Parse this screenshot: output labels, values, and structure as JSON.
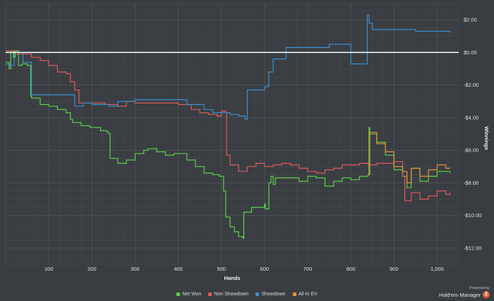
{
  "chart_data": {
    "type": "line",
    "xlabel": "Hands",
    "ylabel": "Winnings",
    "xlim": [
      0,
      1050
    ],
    "ylim": [
      -13,
      3
    ],
    "x_ticks": [
      100,
      200,
      300,
      400,
      500,
      600,
      700,
      800,
      900,
      1000
    ],
    "x_tick_labels": [
      "100",
      "200",
      "300",
      "400",
      "500",
      "600",
      "700",
      "800",
      "900",
      "1,000"
    ],
    "y_ticks": [
      2,
      0,
      -2,
      -4,
      -6,
      -8,
      -10,
      -12
    ],
    "y_tick_labels": [
      "$2.00",
      "$0.00",
      "-$2.00",
      "-$4.00",
      "-$6.00",
      "-$8.00",
      "-$10.00",
      "-$12.00"
    ],
    "grid": true,
    "legend_position": "bottom",
    "series": [
      {
        "name": "Net Won",
        "color": "#5bd048",
        "x": [
          0,
          8,
          12,
          18,
          22,
          30,
          38,
          50,
          58,
          60,
          80,
          100,
          120,
          140,
          150,
          155,
          175,
          195,
          220,
          235,
          240,
          242,
          260,
          280,
          300,
          320,
          330,
          350,
          370,
          390,
          420,
          440,
          460,
          480,
          495,
          500,
          505,
          510,
          520,
          530,
          540,
          550,
          552,
          570,
          600,
          602,
          610,
          615,
          620,
          625,
          650,
          680,
          700,
          720,
          740,
          760,
          780,
          800,
          820,
          840,
          842,
          844,
          860,
          880,
          900,
          920,
          930,
          940,
          960,
          980,
          1000,
          1020,
          1030
        ],
        "y": [
          -0.6,
          -1.0,
          0.1,
          -0.3,
          0.1,
          -0.8,
          -0.7,
          -0.8,
          -2.7,
          -2.8,
          -3.2,
          -3.3,
          -3.5,
          -3.7,
          -4.1,
          -4.3,
          -4.5,
          -4.6,
          -4.8,
          -4.9,
          -5.0,
          -6.5,
          -6.8,
          -6.6,
          -6.2,
          -6.0,
          -5.9,
          -6.1,
          -6.3,
          -6.2,
          -6.6,
          -7.0,
          -7.4,
          -7.5,
          -7.6,
          -7.6,
          -8.5,
          -10.1,
          -10.7,
          -11.0,
          -11.3,
          -11.4,
          -9.8,
          -9.5,
          -9.3,
          -9.6,
          -8.0,
          -7.6,
          -8.1,
          -7.7,
          -7.7,
          -7.9,
          -7.6,
          -7.7,
          -8.2,
          -7.9,
          -7.7,
          -7.8,
          -7.6,
          -7.5,
          -4.6,
          -5.0,
          -5.5,
          -6.3,
          -7.2,
          -7.6,
          -8.3,
          -7.1,
          -7.9,
          -7.6,
          -7.3,
          -7.3,
          -7.4
        ]
      },
      {
        "name": "Non Showdown",
        "color": "#e05a5a",
        "x": [
          0,
          20,
          40,
          60,
          80,
          100,
          120,
          140,
          150,
          160,
          170,
          200,
          230,
          260,
          280,
          300,
          350,
          400,
          430,
          450,
          470,
          490,
          500,
          510,
          512,
          520,
          540,
          560,
          580,
          600,
          620,
          640,
          660,
          680,
          700,
          720,
          740,
          760,
          780,
          800,
          820,
          840,
          860,
          880,
          900,
          920,
          925,
          940,
          960,
          980,
          1000,
          1020,
          1030
        ],
        "y": [
          0.1,
          -0.1,
          -0.1,
          -0.3,
          -0.5,
          -0.8,
          -1.2,
          -1.3,
          -1.8,
          -2.3,
          -3.1,
          -3.1,
          -3.2,
          -3.3,
          -3.0,
          -3.1,
          -3.1,
          -3.2,
          -3.5,
          -3.7,
          -3.8,
          -3.9,
          -3.6,
          -3.7,
          -6.3,
          -6.9,
          -7.3,
          -7.0,
          -6.8,
          -7.0,
          -6.9,
          -6.8,
          -6.9,
          -7.1,
          -7.3,
          -7.4,
          -7.2,
          -7.1,
          -6.9,
          -6.9,
          -6.8,
          -6.9,
          -6.8,
          -6.8,
          -6.7,
          -7.6,
          -9.1,
          -8.6,
          -9.0,
          -8.8,
          -8.5,
          -8.7,
          -8.6
        ]
      },
      {
        "name": "Showdown",
        "color": "#3a8fd0",
        "x": [
          0,
          10,
          20,
          40,
          60,
          100,
          140,
          160,
          180,
          200,
          240,
          260,
          300,
          340,
          380,
          420,
          460,
          480,
          500,
          520,
          540,
          555,
          560,
          600,
          610,
          620,
          650,
          700,
          750,
          800,
          830,
          838,
          842,
          850,
          900,
          950,
          1000,
          1030
        ],
        "y": [
          -0.7,
          -0.8,
          0.0,
          -0.6,
          -2.6,
          -2.6,
          -2.6,
          -3.3,
          -3.1,
          -3.2,
          -3.3,
          -3.0,
          -2.9,
          -2.9,
          -2.9,
          -3.2,
          -3.5,
          -3.7,
          -3.7,
          -3.8,
          -3.9,
          -4.1,
          -2.3,
          -2.1,
          -1.2,
          -0.4,
          0.3,
          0.3,
          0.5,
          -0.7,
          -0.7,
          2.3,
          1.8,
          1.4,
          1.4,
          1.3,
          1.3,
          1.2
        ]
      },
      {
        "name": "All-In EV",
        "color": "#e8923a",
        "x": [
          840,
          844,
          860,
          880,
          900,
          920,
          930,
          940,
          960,
          980,
          1000,
          1020,
          1030
        ],
        "y": [
          -7.5,
          -4.9,
          -5.6,
          -6.1,
          -7.0,
          -7.3,
          -8.0,
          -7.1,
          -7.6,
          -7.2,
          -6.9,
          -7.1,
          -7.1
        ]
      }
    ]
  },
  "brand": {
    "powered_by": "Powered by",
    "name": "Hold'em Manager",
    "badge": "2"
  }
}
